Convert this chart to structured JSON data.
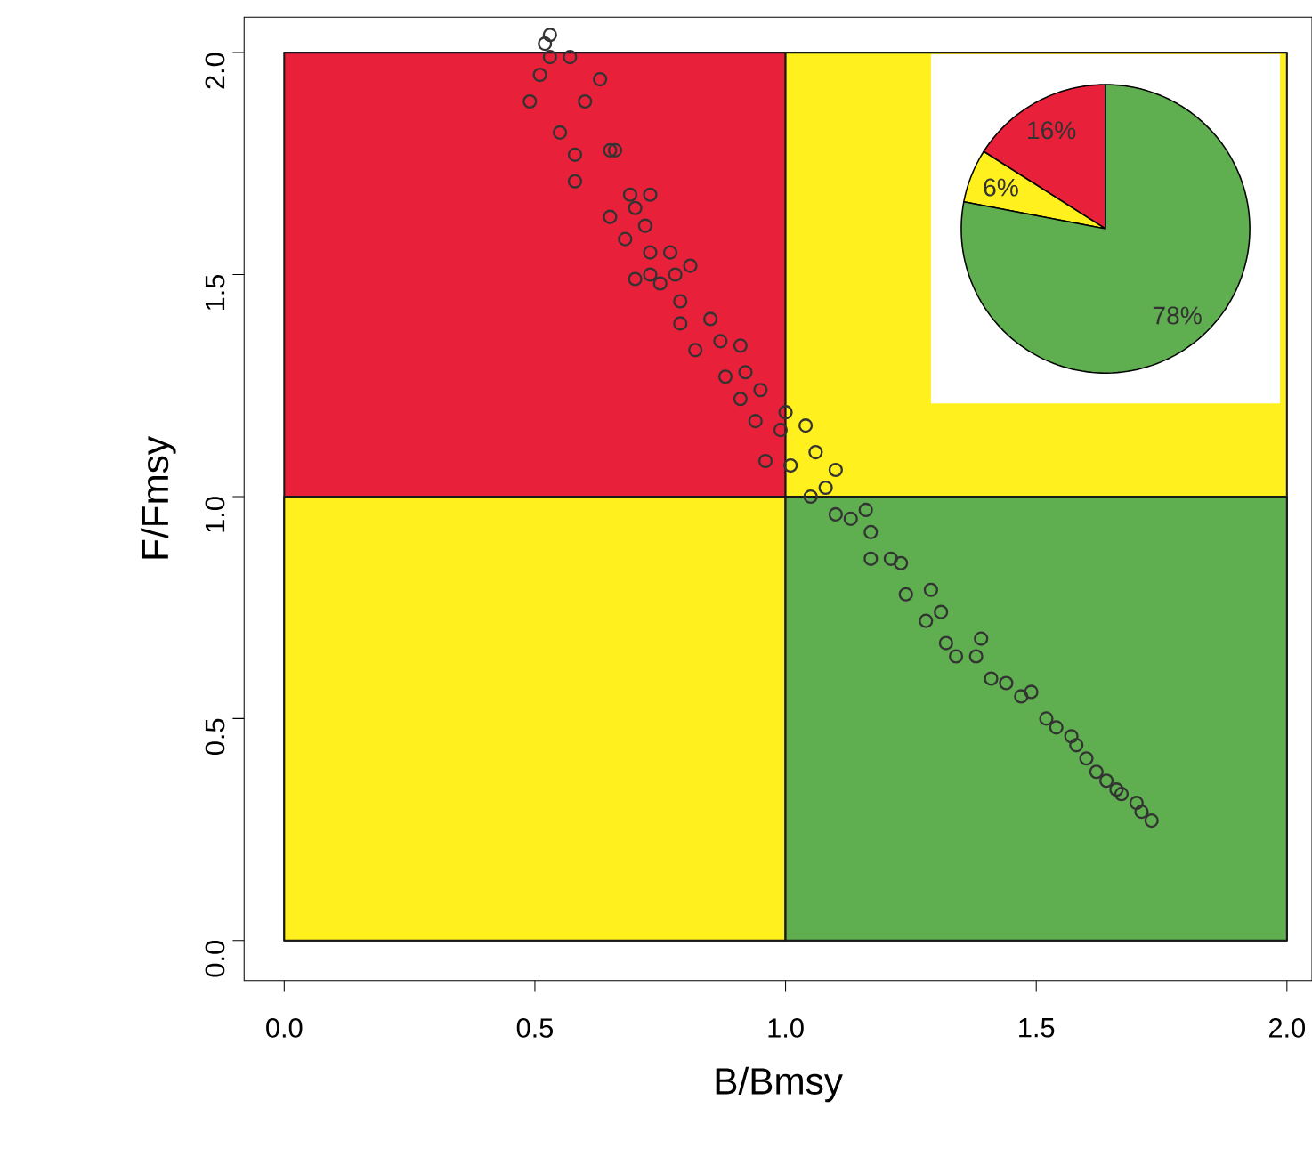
{
  "chart_data": [
    {
      "type": "scatter",
      "xlabel": "B/Bmsy",
      "ylabel": "F/Fmsy",
      "xlim": [
        -0.08,
        2.05
      ],
      "ylim": [
        -0.09,
        2.08
      ],
      "xticks": [
        {
          "value": 0,
          "label": "0.0"
        },
        {
          "value": 0.5,
          "label": "0.5"
        },
        {
          "value": 1,
          "label": "1.0"
        },
        {
          "value": 1.5,
          "label": "1.5"
        },
        {
          "value": 2,
          "label": "2.0"
        }
      ],
      "yticks": [
        {
          "value": 0,
          "label": "0.0"
        },
        {
          "value": 0.5,
          "label": "0.5"
        },
        {
          "value": 1,
          "label": "1.0"
        },
        {
          "value": 1.5,
          "label": "1.5"
        },
        {
          "value": 2,
          "label": "2.0"
        }
      ],
      "grid": false,
      "series": [
        {
          "type": "area",
          "color": "#e8203a",
          "x": [
            0,
            1
          ],
          "values": [
            2,
            2
          ]
        },
        {
          "type": "area",
          "color": "#fff01e",
          "x": [
            0,
            1
          ],
          "values": [
            1,
            1
          ]
        },
        {
          "type": "area",
          "color": "#fff01e",
          "x": [
            1,
            2
          ],
          "values": [
            2,
            2
          ]
        },
        {
          "type": "area",
          "color": "#5fae50",
          "x": [
            1,
            2
          ],
          "values": [
            1,
            1
          ]
        },
        {
          "color": "#333333",
          "marker": "circle",
          "x": [
            0.53,
            0.52,
            0.53,
            0.57,
            0.51,
            0.63,
            0.49,
            0.6,
            0.55,
            0.58,
            0.65,
            0.66,
            0.58,
            0.65,
            0.69,
            0.73,
            0.7,
            0.68,
            0.72,
            0.73,
            0.77,
            0.81,
            0.7,
            0.73,
            0.75,
            0.78,
            0.79,
            0.79,
            0.82,
            0.85,
            0.87,
            0.91,
            0.88,
            0.92,
            0.95,
            0.94,
            0.96,
            0.99,
            0.91,
            1.0,
            1.04,
            1.05,
            1.01,
            1.1,
            1.1,
            1.16,
            1.17,
            1.17,
            1.23,
            1.24,
            1.29,
            1.28,
            1.32,
            1.34,
            1.39,
            1.41,
            1.13,
            1.21,
            1.31,
            1.38,
            1.47,
            1.54,
            1.6,
            1.67,
            1.73,
            1.49,
            1.57,
            1.64,
            1.7,
            1.06,
            1.08,
            1.44,
            1.52,
            1.58,
            1.62,
            1.66,
            1.71
          ],
          "values": [
            2.04,
            2.02,
            1.99,
            1.99,
            1.95,
            1.94,
            1.89,
            1.89,
            1.82,
            1.77,
            1.78,
            1.78,
            1.71,
            1.63,
            1.68,
            1.68,
            1.65,
            1.58,
            1.61,
            1.55,
            1.55,
            1.52,
            1.49,
            1.5,
            1.48,
            1.5,
            1.44,
            1.39,
            1.33,
            1.4,
            1.35,
            1.34,
            1.27,
            1.28,
            1.24,
            1.17,
            1.08,
            1.15,
            1.22,
            1.19,
            1.16,
            1.0,
            1.07,
            1.06,
            0.96,
            0.97,
            0.92,
            0.86,
            0.85,
            0.78,
            0.79,
            0.72,
            0.67,
            0.64,
            0.68,
            0.59,
            0.95,
            0.86,
            0.74,
            0.64,
            0.55,
            0.48,
            0.41,
            0.33,
            0.27,
            0.56,
            0.46,
            0.36,
            0.31,
            1.1,
            1.02,
            0.58,
            0.5,
            0.44,
            0.38,
            0.34,
            0.29
          ]
        }
      ]
    },
    {
      "type": "pie",
      "categories": [
        null,
        null,
        null
      ],
      "values": [
        16,
        6,
        78
      ],
      "colors": [
        "#e8203a",
        "#fff01e",
        "#5fae50"
      ],
      "value_labels": [
        "16%",
        "6%",
        "78%"
      ]
    }
  ]
}
